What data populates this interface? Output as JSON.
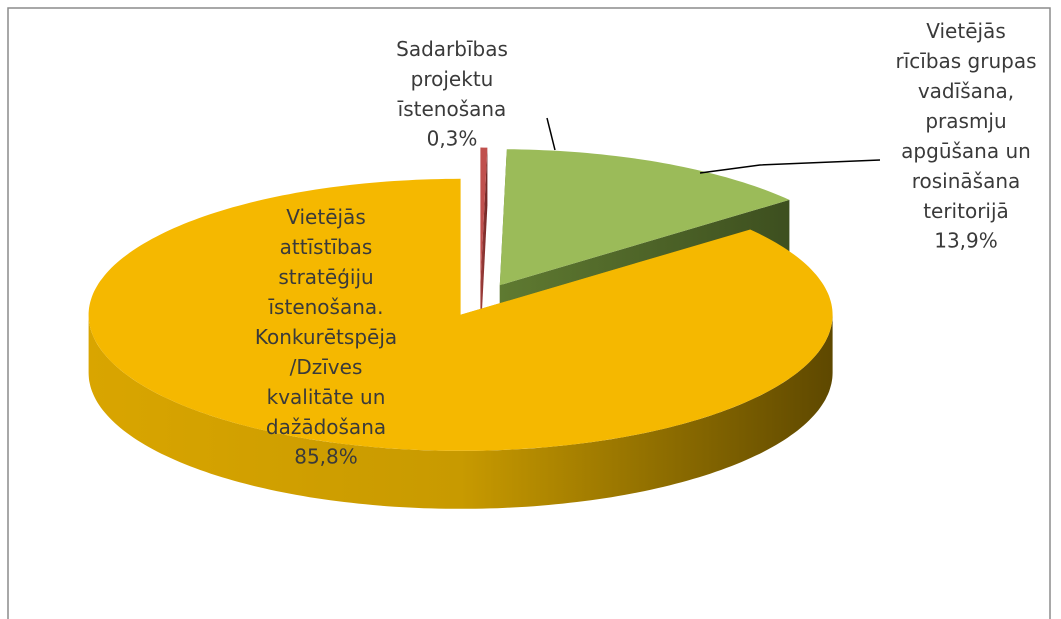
{
  "chart_data": {
    "type": "pie3d",
    "categories": [
      "Sadarbības\nprojektu\nīstenošana",
      "Vietējās\nrīcības grupas\nvadīšana,\nprasmju\napgūšana un\nrosināšana\nteritorijā",
      "Vietējās\nattīstības\nstratēģiju\nīstenošana.\nKonkurētspēja\n/Dzīves\nkvalitāte un\ndažādošana"
    ],
    "values": [
      0.3,
      13.9,
      85.8
    ],
    "value_labels": [
      "0,3%",
      "13,9%",
      "85,8%"
    ],
    "colors": [
      "#c0504d",
      "#9bbb59",
      "#f5b800"
    ]
  }
}
